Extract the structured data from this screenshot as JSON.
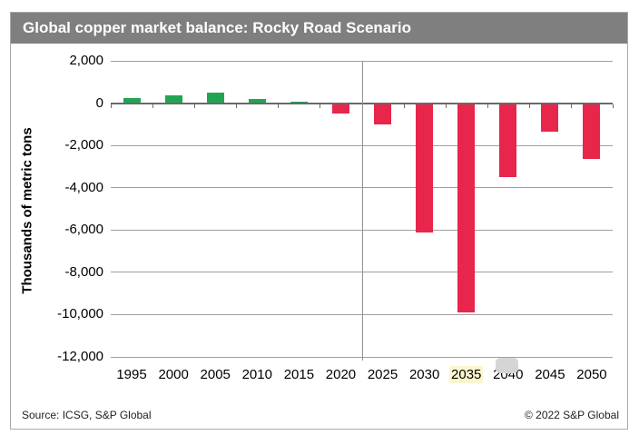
{
  "header": {
    "title": "Global copper market balance: Rocky Road Scenario",
    "bg_color": "#7f7f7f",
    "text_color": "#ffffff"
  },
  "footer": {
    "source": "Source: ICSG, S&P Global",
    "copyright": "© 2022 S&P Global"
  },
  "chart_data": {
    "type": "bar",
    "title": "Global copper market balance: Rocky Road Scenario",
    "xlabel": "",
    "ylabel": "Thousands of metric tons",
    "categories": [
      "1995",
      "2000",
      "2005",
      "2010",
      "2015",
      "2020",
      "2025",
      "2030",
      "2035",
      "2040",
      "2045",
      "2050"
    ],
    "values": [
      250,
      350,
      500,
      200,
      75,
      -500,
      -1000,
      -6100,
      -9900,
      -3500,
      -1350,
      -2650
    ],
    "ylim": [
      -12000,
      2000
    ],
    "ytick_interval": 2000,
    "ytick_labels": [
      "2,000",
      "0",
      "-2,000",
      "-4,000",
      "-6,000",
      "-8,000",
      "-10,000",
      "-12,000"
    ],
    "grid": "horizontal",
    "legend": "none",
    "positive_color": "#21a553",
    "negative_color": "#e8254b",
    "highlighted_category": "2035",
    "highlight_bg_color": "#fbf6cf",
    "divider_between": [
      "2020",
      "2025"
    ]
  }
}
